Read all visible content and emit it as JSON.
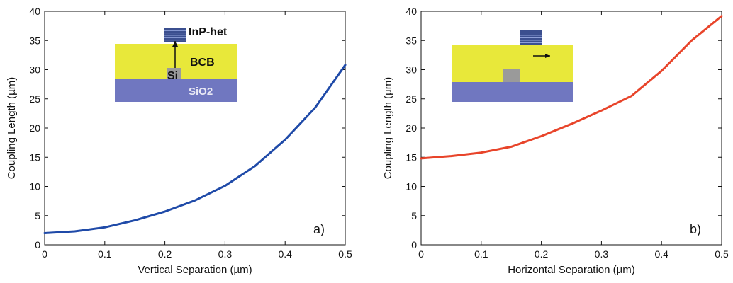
{
  "chart_data": [
    {
      "type": "line",
      "panel_label": "a)",
      "xlabel": "Vertical Separation (µm)",
      "ylabel": "Coupling Length (µm)",
      "xlim": [
        0,
        0.5
      ],
      "ylim": [
        0,
        40
      ],
      "xticks": [
        "0",
        "0.1",
        "0.2",
        "0.3",
        "0.4",
        "0.5"
      ],
      "yticks": [
        "0",
        "5",
        "10",
        "15",
        "20",
        "25",
        "30",
        "35",
        "40"
      ],
      "grid": false,
      "series": [
        {
          "color": "#1f4aa8",
          "x": [
            0,
            0.05,
            0.1,
            0.15,
            0.2,
            0.25,
            0.3,
            0.35,
            0.4,
            0.45,
            0.5
          ],
          "y": [
            2.0,
            2.3,
            3.0,
            4.2,
            5.7,
            7.6,
            10.1,
            13.5,
            18.0,
            23.5,
            30.8
          ]
        }
      ],
      "inset": {
        "labels": {
          "top": "InP-het",
          "middle": "BCB",
          "core": "Si",
          "bottom": "SiO2"
        },
        "colors": {
          "bcb": "#e8e83a",
          "sio2": "#7077c0",
          "si": "#9a9a9a",
          "inp": "#3b4f8f"
        }
      }
    },
    {
      "type": "line",
      "panel_label": "b)",
      "xlabel": "Horizontal Separation (µm)",
      "ylabel": "Coupling Length (µm)",
      "xlim": [
        0,
        0.5
      ],
      "ylim": [
        0,
        40
      ],
      "xticks": [
        "0",
        "0.1",
        "0.2",
        "0.3",
        "0.4",
        "0.5"
      ],
      "yticks": [
        "0",
        "5",
        "10",
        "15",
        "20",
        "25",
        "30",
        "35",
        "40"
      ],
      "grid": false,
      "series": [
        {
          "color": "#e8442a",
          "x": [
            0,
            0.05,
            0.1,
            0.15,
            0.2,
            0.25,
            0.3,
            0.35,
            0.4,
            0.45,
            0.5
          ],
          "y": [
            14.8,
            15.2,
            15.8,
            16.8,
            18.6,
            20.7,
            23.0,
            25.5,
            29.8,
            35.0,
            39.2
          ]
        }
      ],
      "inset": {
        "colors": {
          "bcb": "#e8e83a",
          "sio2": "#7077c0",
          "si": "#9a9a9a",
          "inp": "#3b4f8f"
        }
      }
    }
  ]
}
